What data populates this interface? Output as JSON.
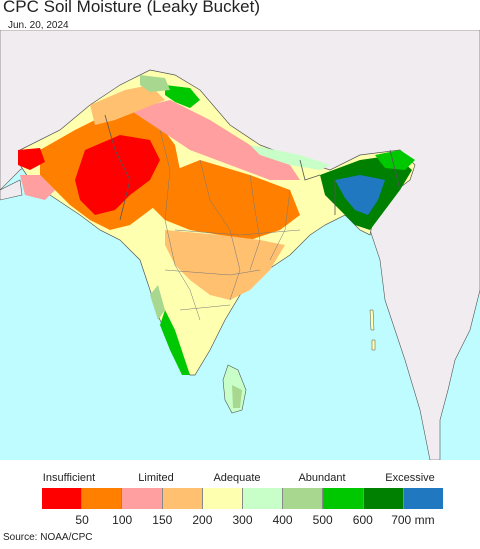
{
  "title": "CPC Soil Moisture (Leaky Bucket)",
  "date": "Jun. 20, 2024",
  "source": "Source: NOAA/CPC",
  "legend": {
    "categories": [
      "Insufficient",
      "Limited",
      "Adequate",
      "Abundant",
      "Excessive"
    ],
    "colors": [
      "#ff0000",
      "#ff8000",
      "#ff9fa0",
      "#ffc070",
      "#ffffb0",
      "#c8ffc8",
      "#a8d890",
      "#00c800",
      "#008000",
      "#1f78c0"
    ],
    "ticks": [
      "50",
      "100",
      "150",
      "200",
      "300",
      "400",
      "500",
      "600",
      "700 mm"
    ]
  },
  "colors": {
    "ocean": "#bffcff",
    "land_other": "#f0ecf0",
    "border": "#555555"
  }
}
